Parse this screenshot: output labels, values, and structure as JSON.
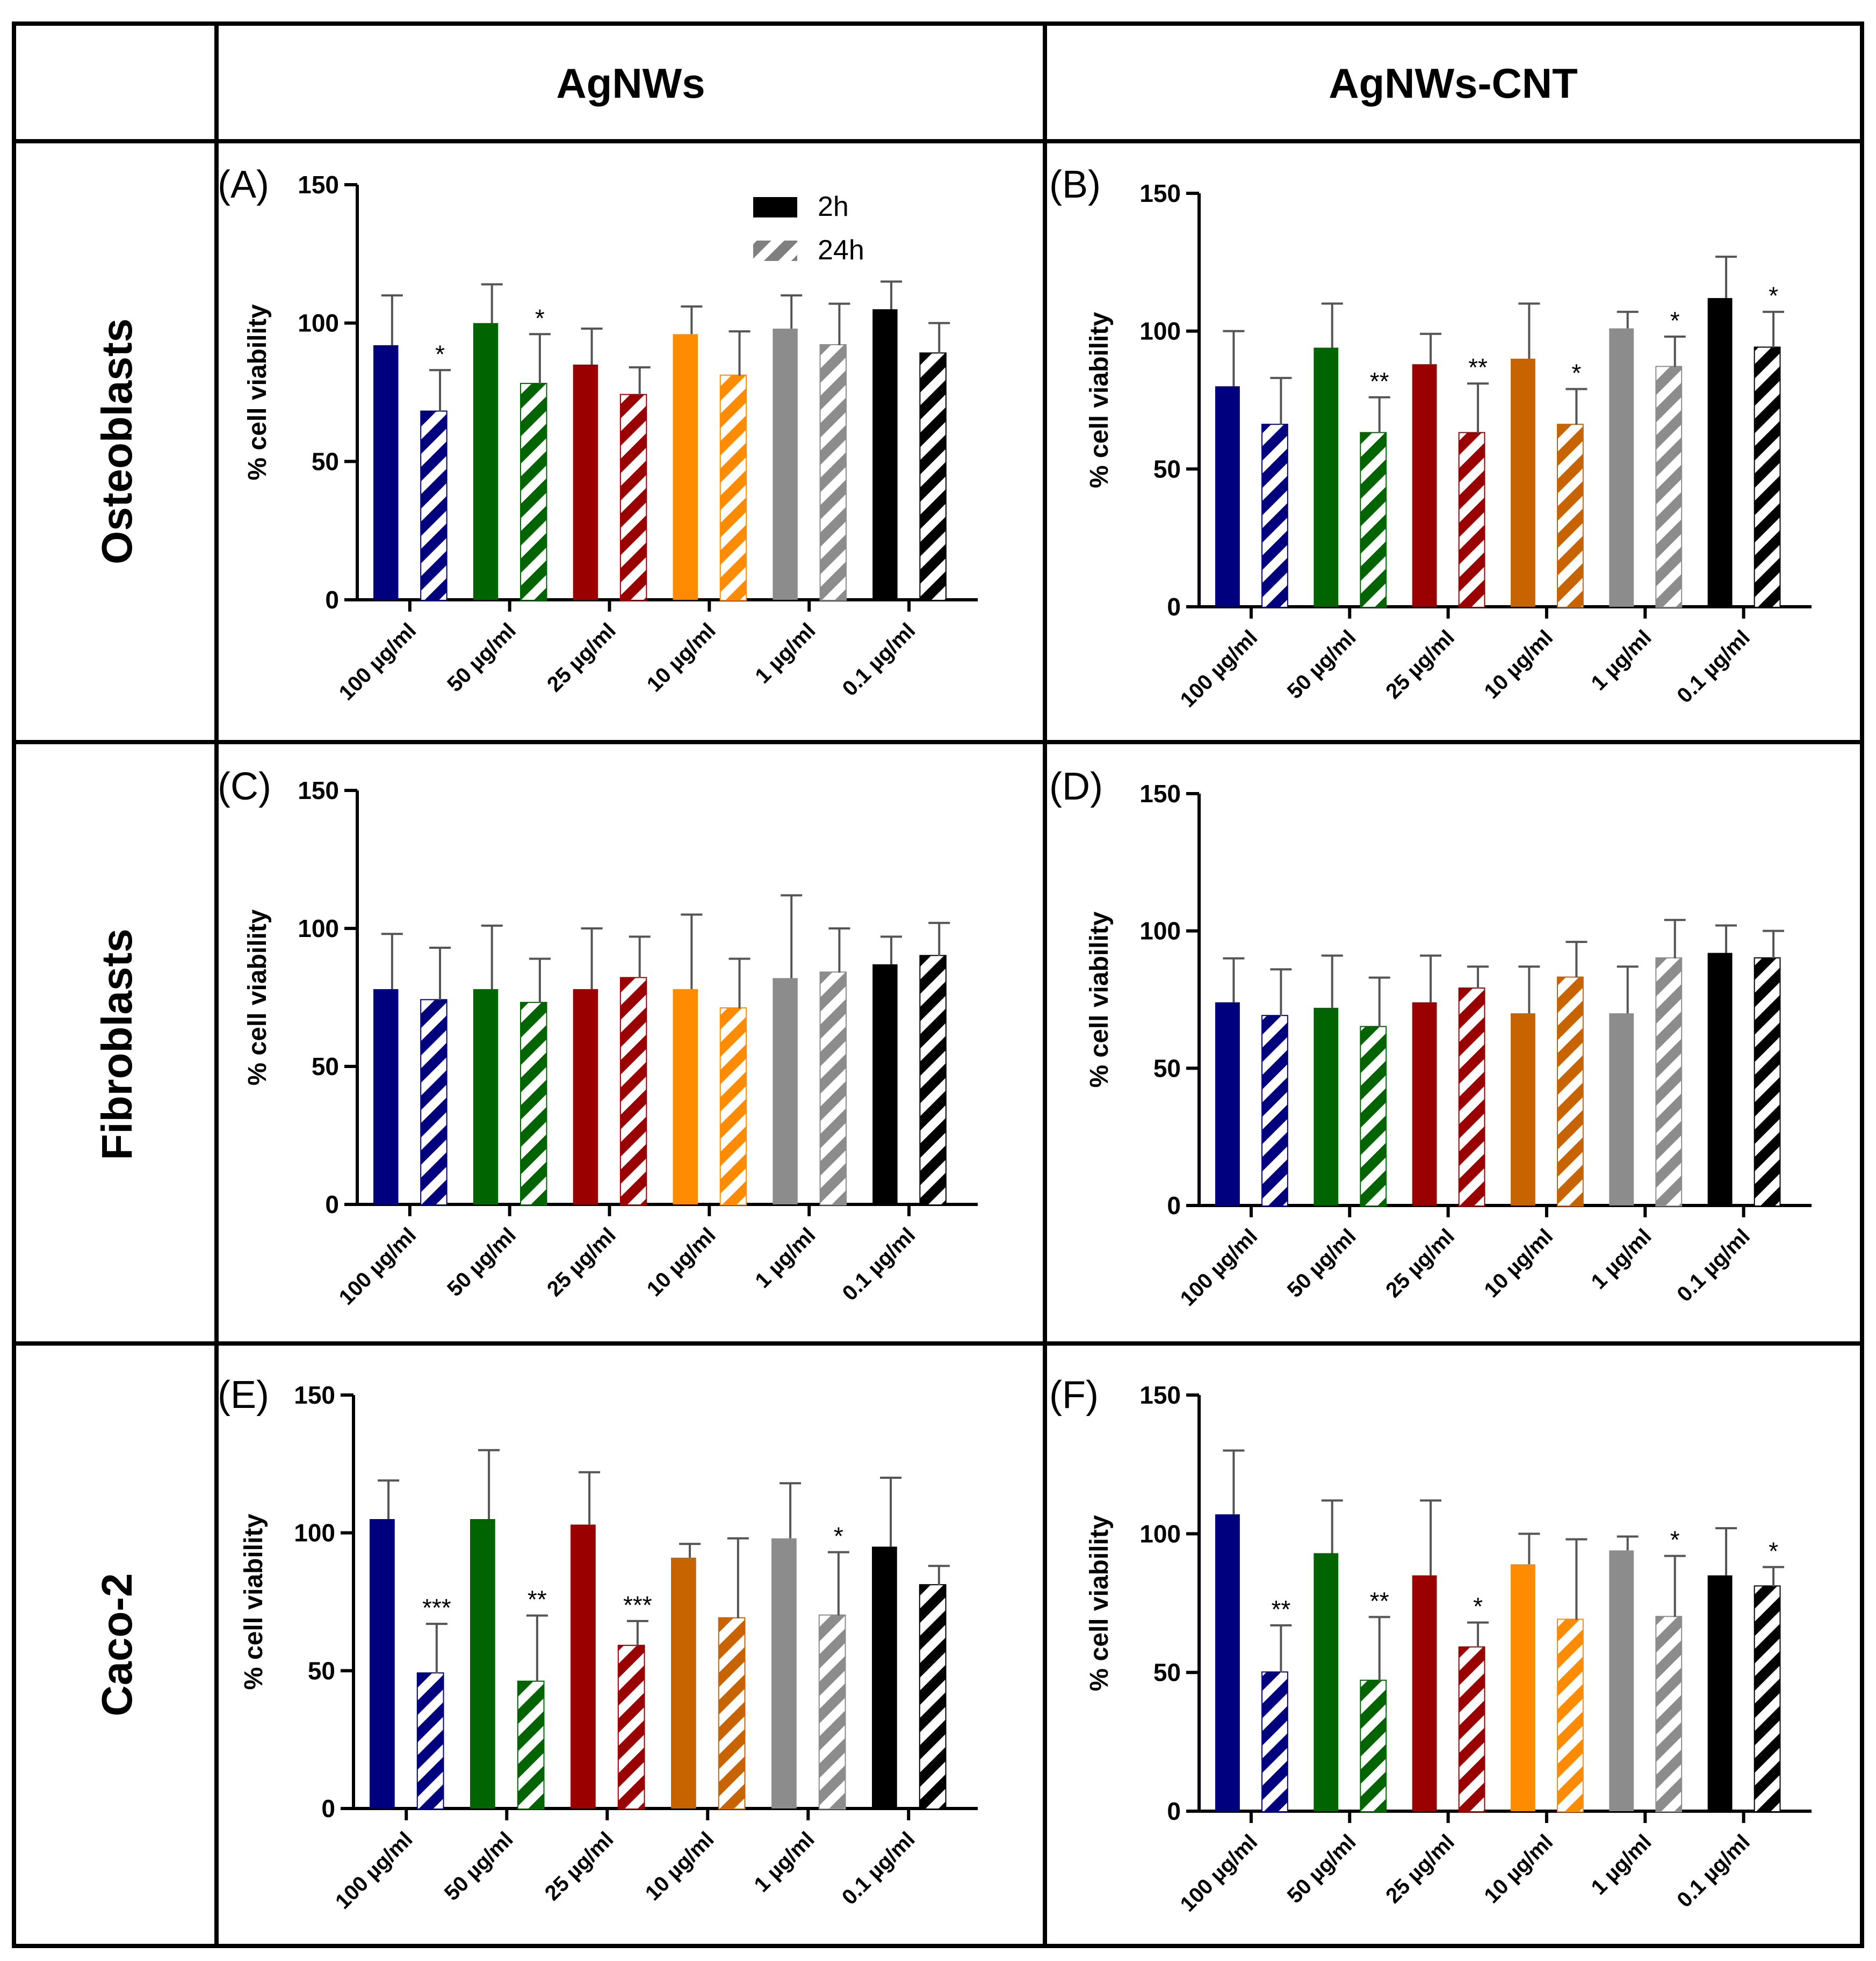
{
  "figure": {
    "column_headers": [
      "AgNWs",
      "AgNWs-CNT"
    ],
    "row_headers": [
      "Osteoblasts",
      "Fibroblasts",
      "Caco-2"
    ]
  },
  "legend": {
    "items": [
      "2h",
      "24h"
    ]
  },
  "colors": {
    "series": [
      "#00007f",
      "#006400",
      "#9b0000",
      "#ff8c00",
      "#8c8c8c",
      "#000000"
    ],
    "fibro_orange": "#c86400"
  },
  "chart_data": [
    {
      "type": "bar",
      "panel": "(A)",
      "cell": "Osteoblasts / AgNWs",
      "ylabel": "% cell viability",
      "ylim": [
        0,
        150
      ],
      "yticks": [
        0,
        50,
        100,
        150
      ],
      "categories": [
        "100 µg/ml",
        "50 µg/ml",
        "25 µg/ml",
        "10 µg/ml",
        "1 µg/ml",
        "0.1 µg/ml"
      ],
      "series": [
        {
          "name": "2h",
          "values": [
            92,
            100,
            85,
            96,
            98,
            105
          ],
          "errors": [
            18,
            14,
            13,
            10,
            12,
            10
          ],
          "sig": [
            "",
            "",
            "",
            "",
            "",
            ""
          ]
        },
        {
          "name": "24h",
          "values": [
            68,
            78,
            74,
            81,
            92,
            89
          ],
          "errors": [
            15,
            18,
            10,
            16,
            15,
            11
          ],
          "sig": [
            "*",
            "*",
            "",
            "",
            "",
            ""
          ]
        }
      ]
    },
    {
      "type": "bar",
      "panel": "(B)",
      "cell": "Osteoblasts / AgNWs-CNT",
      "ylabel": "% cell viability",
      "ylim": [
        0,
        150
      ],
      "yticks": [
        0,
        50,
        100,
        150
      ],
      "categories": [
        "100 µg/ml",
        "50 µg/ml",
        "25 µg/ml",
        "10 µg/ml",
        "1 µg/ml",
        "0.1 µg/ml"
      ],
      "series": [
        {
          "name": "2h",
          "values": [
            80,
            94,
            88,
            90,
            101,
            112
          ],
          "errors": [
            20,
            16,
            11,
            20,
            6,
            15
          ],
          "sig": [
            "",
            "",
            "",
            "",
            "",
            ""
          ]
        },
        {
          "name": "24h",
          "values": [
            66,
            63,
            63,
            66,
            87,
            94
          ],
          "errors": [
            17,
            13,
            18,
            13,
            11,
            13
          ],
          "sig": [
            "",
            "**",
            "**",
            "*",
            "*",
            "*"
          ]
        }
      ]
    },
    {
      "type": "bar",
      "panel": "(C)",
      "cell": "Fibroblasts / AgNWs",
      "ylabel": "% cell viability",
      "ylim": [
        0,
        150
      ],
      "yticks": [
        0,
        50,
        100,
        150
      ],
      "categories": [
        "100 µg/ml",
        "50 µg/ml",
        "25 µg/ml",
        "10 µg/ml",
        "1 µg/ml",
        "0.1 µg/ml"
      ],
      "series": [
        {
          "name": "2h",
          "values": [
            78,
            78,
            78,
            78,
            82,
            87
          ],
          "errors": [
            20,
            23,
            22,
            27,
            30,
            10
          ],
          "sig": [
            "",
            "",
            "",
            "",
            "",
            ""
          ]
        },
        {
          "name": "24h",
          "values": [
            74,
            73,
            82,
            71,
            84,
            90
          ],
          "errors": [
            19,
            16,
            15,
            18,
            16,
            12
          ],
          "sig": [
            "",
            "",
            "",
            "",
            "",
            ""
          ]
        }
      ]
    },
    {
      "type": "bar",
      "panel": "(D)",
      "cell": "Fibroblasts / AgNWs-CNT",
      "ylabel": "% cell viability",
      "ylim": [
        0,
        150
      ],
      "yticks": [
        0,
        50,
        100,
        150
      ],
      "categories": [
        "100 µg/ml",
        "50 µg/ml",
        "25 µg/ml",
        "10 µg/ml",
        "1 µg/ml",
        "0.1 µg/ml"
      ],
      "series": [
        {
          "name": "2h",
          "values": [
            74,
            72,
            74,
            70,
            70,
            92
          ],
          "errors": [
            16,
            19,
            17,
            17,
            17,
            10
          ],
          "sig": [
            "",
            "",
            "",
            "",
            "",
            ""
          ]
        },
        {
          "name": "24h",
          "values": [
            69,
            65,
            79,
            83,
            90,
            90
          ],
          "errors": [
            17,
            18,
            8,
            13,
            14,
            10
          ],
          "sig": [
            "",
            "",
            "",
            "",
            "",
            ""
          ]
        }
      ]
    },
    {
      "type": "bar",
      "panel": "(E)",
      "cell": "Caco-2 / AgNWs",
      "ylabel": "% cell viability",
      "ylim": [
        0,
        150
      ],
      "yticks": [
        0,
        50,
        100,
        150
      ],
      "categories": [
        "100 µg/ml",
        "50 µg/ml",
        "25 µg/ml",
        "10 µg/ml",
        "1 µg/ml",
        "0.1 µg/ml"
      ],
      "series": [
        {
          "name": "2h",
          "values": [
            105,
            105,
            103,
            91,
            98,
            95
          ],
          "errors": [
            14,
            25,
            19,
            5,
            20,
            25
          ],
          "sig": [
            "",
            "",
            "",
            "",
            "",
            ""
          ]
        },
        {
          "name": "24h",
          "values": [
            49,
            46,
            59,
            69,
            70,
            81
          ],
          "errors": [
            18,
            24,
            9,
            29,
            23,
            7
          ],
          "sig": [
            "***",
            "**",
            "***",
            "",
            "*",
            ""
          ]
        }
      ]
    },
    {
      "type": "bar",
      "panel": "(F)",
      "cell": "Caco-2 / AgNWs-CNT",
      "ylabel": "% cell viability",
      "ylim": [
        0,
        150
      ],
      "yticks": [
        0,
        50,
        100,
        150
      ],
      "categories": [
        "100 µg/ml",
        "50 µg/ml",
        "25 µg/ml",
        "10 µg/ml",
        "1 µg/ml",
        "0.1 µg/ml"
      ],
      "series": [
        {
          "name": "2h",
          "values": [
            107,
            93,
            85,
            89,
            94,
            85
          ],
          "errors": [
            23,
            19,
            27,
            11,
            5,
            17
          ],
          "sig": [
            "",
            "",
            "",
            "",
            "",
            ""
          ]
        },
        {
          "name": "24h",
          "values": [
            50,
            47,
            59,
            69,
            70,
            81
          ],
          "errors": [
            17,
            23,
            9,
            29,
            22,
            7
          ],
          "sig": [
            "**",
            "**",
            "*",
            "",
            "*",
            "*"
          ]
        }
      ]
    }
  ]
}
